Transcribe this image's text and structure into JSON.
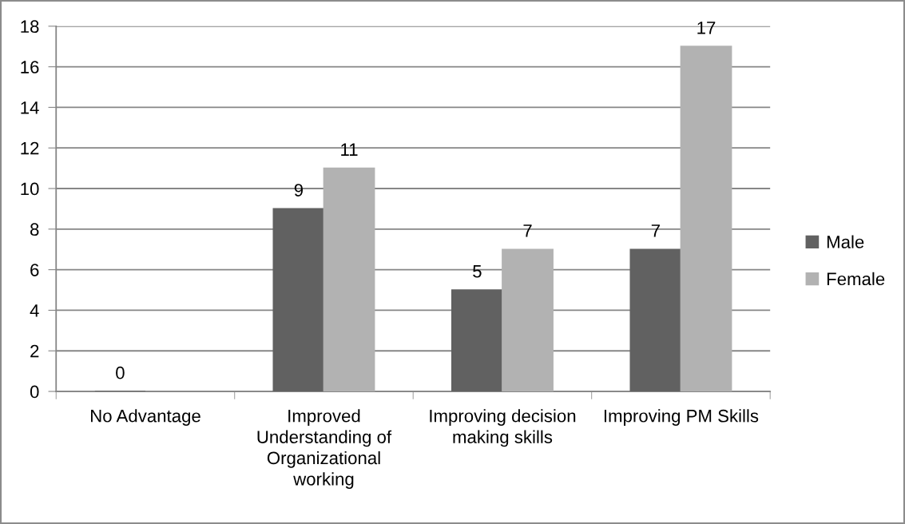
{
  "chart_data": {
    "type": "bar",
    "categories": [
      "No Advantage",
      "Improved Understanding of Organizational working",
      "Improving decision making skills",
      "Improving PM Skills"
    ],
    "series": [
      {
        "name": "Male",
        "color": "#616161",
        "values": [
          0,
          9,
          5,
          7
        ]
      },
      {
        "name": "Female",
        "color": "#b2b2b2",
        "values": [
          null,
          11,
          7,
          17
        ]
      }
    ],
    "ylim": [
      0,
      18
    ],
    "yticks": [
      0,
      2,
      4,
      6,
      8,
      10,
      12,
      14,
      16,
      18
    ],
    "grid": "y",
    "legend": "right",
    "data_labels": true
  }
}
